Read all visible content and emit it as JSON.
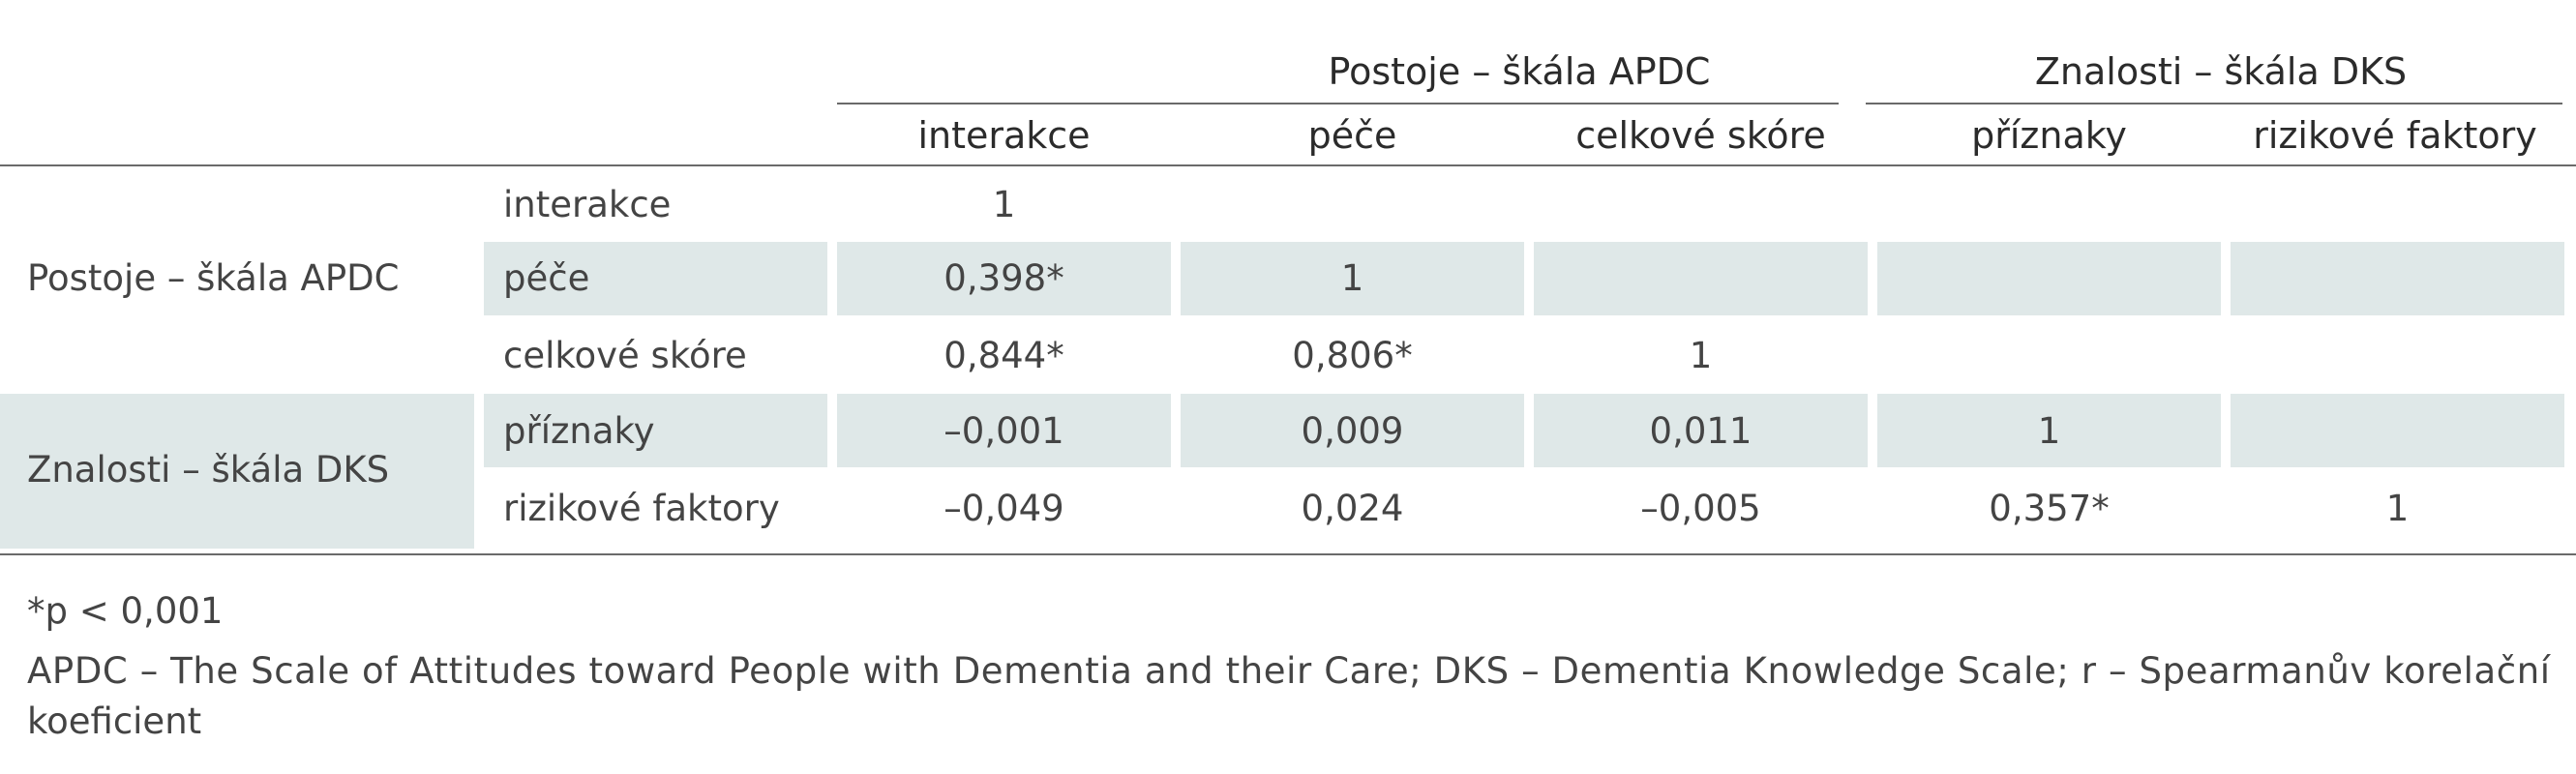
{
  "table": {
    "group_headers": {
      "apdc": "Postoje – škála APDC",
      "dks": "Znalosti – škála DKS"
    },
    "column_headers": [
      "interakce",
      "péče",
      "celkové skóre",
      "příznaky",
      "rizikové faktory"
    ],
    "row_groups": {
      "apdc": "Postoje – škála APDC",
      "dks": "Znalosti – škála DKS"
    },
    "rows": [
      {
        "label": "interakce",
        "cells": [
          "1",
          "",
          "",
          "",
          ""
        ]
      },
      {
        "label": "péče",
        "cells": [
          "0,398*",
          "1",
          "",
          "",
          ""
        ]
      },
      {
        "label": "celkové skóre",
        "cells": [
          "0,844*",
          "0,806*",
          "1",
          "",
          ""
        ]
      },
      {
        "label": "příznaky",
        "cells": [
          "–0,001",
          "0,009",
          "0,011",
          "1",
          ""
        ]
      },
      {
        "label": "rizikové faktory",
        "cells": [
          "–0,049",
          "0,024",
          "–0,005",
          "0,357*",
          "1"
        ]
      }
    ]
  },
  "notes": {
    "significance": "*p < 0,001",
    "abbreviations_line1": "APDC – The Scale of Attitudes toward People with Dementia and their Care; DKS – Dementia Knowledge Scale; r – Spearmanův korelační",
    "abbreviations_line2": "koeficient"
  },
  "colors": {
    "shade": "#dfe8e8",
    "rule": "#6a6a6a"
  }
}
